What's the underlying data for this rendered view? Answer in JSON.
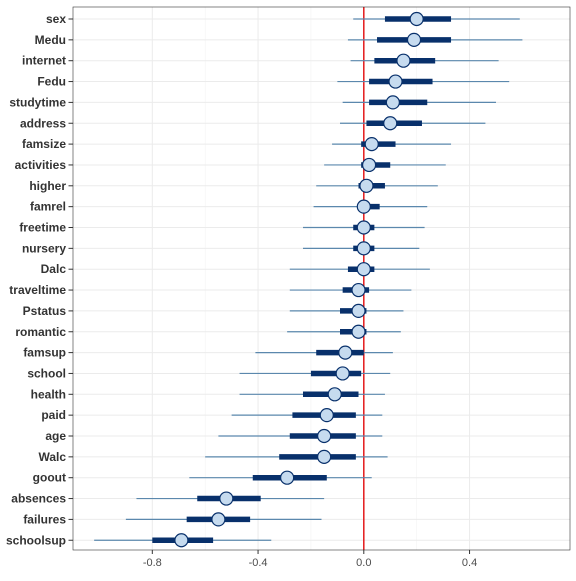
{
  "chart_data": {
    "type": "forest-interval",
    "xlim": [
      -1.1,
      0.78
    ],
    "x_ticks": [
      -0.8,
      -0.4,
      0.0,
      0.4
    ],
    "x_tick_labels": [
      "-0.8",
      "-0.4",
      "0.0",
      "0.4"
    ],
    "reference_line": {
      "x": 0.0,
      "color": "#e41a1c"
    },
    "grid": true,
    "colors": {
      "outer_interval": "#5b88ad",
      "inner_interval": "#08306b",
      "point_fill": "#c6dbef",
      "point_stroke": "#08306b",
      "grid": "#ebebeb",
      "panel_border": "#333333"
    },
    "variables": [
      {
        "label": "sex",
        "estimate": 0.2,
        "inner": [
          0.08,
          0.33
        ],
        "outer": [
          -0.04,
          0.59
        ]
      },
      {
        "label": "Medu",
        "estimate": 0.19,
        "inner": [
          0.05,
          0.33
        ],
        "outer": [
          -0.06,
          0.6
        ]
      },
      {
        "label": "internet",
        "estimate": 0.15,
        "inner": [
          0.04,
          0.27
        ],
        "outer": [
          -0.05,
          0.51
        ]
      },
      {
        "label": "Fedu",
        "estimate": 0.12,
        "inner": [
          0.02,
          0.26
        ],
        "outer": [
          -0.1,
          0.55
        ]
      },
      {
        "label": "studytime",
        "estimate": 0.11,
        "inner": [
          0.02,
          0.24
        ],
        "outer": [
          -0.08,
          0.5
        ]
      },
      {
        "label": "address",
        "estimate": 0.1,
        "inner": [
          0.01,
          0.22
        ],
        "outer": [
          -0.09,
          0.46
        ]
      },
      {
        "label": "famsize",
        "estimate": 0.03,
        "inner": [
          -0.01,
          0.12
        ],
        "outer": [
          -0.12,
          0.33
        ]
      },
      {
        "label": "activities",
        "estimate": 0.02,
        "inner": [
          -0.01,
          0.1
        ],
        "outer": [
          -0.15,
          0.31
        ]
      },
      {
        "label": "higher",
        "estimate": 0.01,
        "inner": [
          -0.02,
          0.08
        ],
        "outer": [
          -0.18,
          0.28
        ]
      },
      {
        "label": "famrel",
        "estimate": 0.0,
        "inner": [
          -0.02,
          0.06
        ],
        "outer": [
          -0.19,
          0.24
        ]
      },
      {
        "label": "freetime",
        "estimate": 0.0,
        "inner": [
          -0.04,
          0.04
        ],
        "outer": [
          -0.23,
          0.23
        ]
      },
      {
        "label": "nursery",
        "estimate": 0.0,
        "inner": [
          -0.04,
          0.04
        ],
        "outer": [
          -0.23,
          0.21
        ]
      },
      {
        "label": "Dalc",
        "estimate": 0.0,
        "inner": [
          -0.06,
          0.04
        ],
        "outer": [
          -0.28,
          0.25
        ]
      },
      {
        "label": "traveltime",
        "estimate": -0.02,
        "inner": [
          -0.08,
          0.02
        ],
        "outer": [
          -0.28,
          0.18
        ]
      },
      {
        "label": "Pstatus",
        "estimate": -0.02,
        "inner": [
          -0.09,
          0.01
        ],
        "outer": [
          -0.28,
          0.15
        ]
      },
      {
        "label": "romantic",
        "estimate": -0.02,
        "inner": [
          -0.09,
          0.01
        ],
        "outer": [
          -0.29,
          0.14
        ]
      },
      {
        "label": "famsup",
        "estimate": -0.07,
        "inner": [
          -0.18,
          0.0
        ],
        "outer": [
          -0.41,
          0.11
        ]
      },
      {
        "label": "school",
        "estimate": -0.08,
        "inner": [
          -0.2,
          -0.01
        ],
        "outer": [
          -0.47,
          0.1
        ]
      },
      {
        "label": "health",
        "estimate": -0.11,
        "inner": [
          -0.23,
          -0.02
        ],
        "outer": [
          -0.47,
          0.08
        ]
      },
      {
        "label": "paid",
        "estimate": -0.14,
        "inner": [
          -0.27,
          -0.03
        ],
        "outer": [
          -0.5,
          0.07
        ]
      },
      {
        "label": "age",
        "estimate": -0.15,
        "inner": [
          -0.28,
          -0.03
        ],
        "outer": [
          -0.55,
          0.07
        ]
      },
      {
        "label": "Walc",
        "estimate": -0.15,
        "inner": [
          -0.32,
          -0.03
        ],
        "outer": [
          -0.6,
          0.09
        ]
      },
      {
        "label": "goout",
        "estimate": -0.29,
        "inner": [
          -0.42,
          -0.14
        ],
        "outer": [
          -0.66,
          0.03
        ]
      },
      {
        "label": "absences",
        "estimate": -0.52,
        "inner": [
          -0.63,
          -0.39
        ],
        "outer": [
          -0.86,
          -0.15
        ]
      },
      {
        "label": "failures",
        "estimate": -0.55,
        "inner": [
          -0.67,
          -0.43
        ],
        "outer": [
          -0.9,
          -0.16
        ]
      },
      {
        "label": "schoolsup",
        "estimate": -0.69,
        "inner": [
          -0.8,
          -0.57
        ],
        "outer": [
          -1.02,
          -0.35
        ]
      }
    ]
  }
}
